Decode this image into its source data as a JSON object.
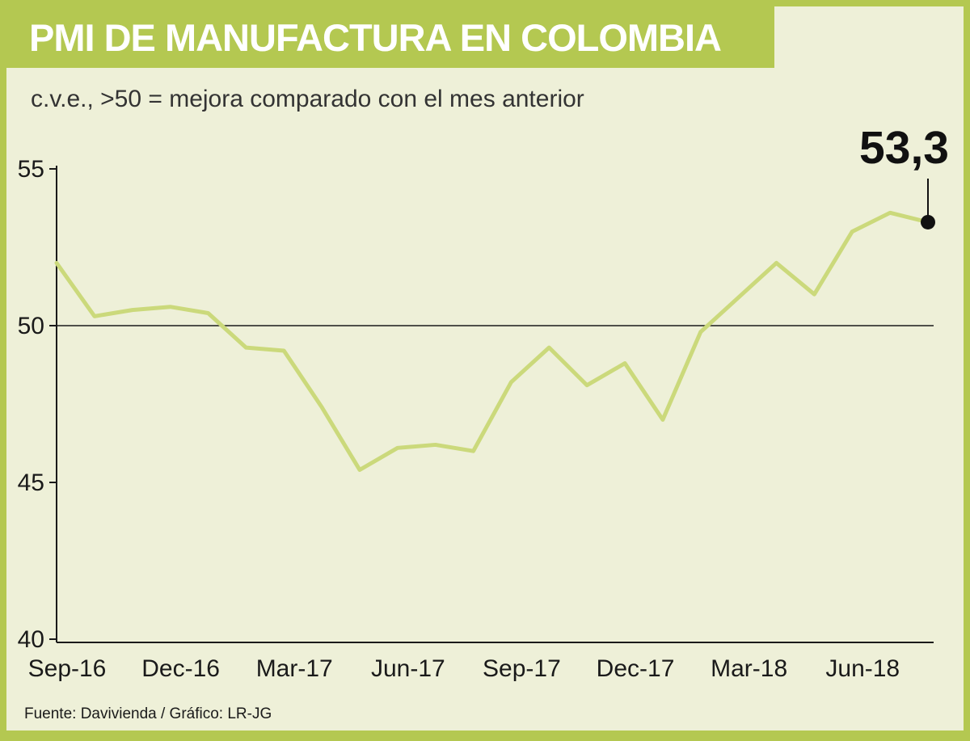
{
  "header": {
    "title": "PMI DE MANUFACTURA EN COLOMBIA"
  },
  "subtitle": "c.v.e., >50 = mejora comparado con el mes anterior",
  "annotation": {
    "label": "53,3"
  },
  "footer": "Fuente: Davivienda / Gráfico: LR-JG",
  "colors": {
    "band_green": "#b4c851",
    "background": "#eef0d8",
    "line": "#cbd97b",
    "axis": "#1a1a1a",
    "dot": "#111111"
  },
  "chart_data": {
    "type": "line",
    "title": "PMI DE MANUFACTURA EN COLOMBIA",
    "subtitle": "c.v.e., >50 = mejora comparado con el mes anterior",
    "x": [
      "Sep-16",
      "Oct-16",
      "Nov-16",
      "Dec-16",
      "Jan-17",
      "Feb-17",
      "Mar-17",
      "Apr-17",
      "May-17",
      "Jun-17",
      "Jul-17",
      "Aug-17",
      "Sep-17",
      "Oct-17",
      "Nov-17",
      "Dec-17",
      "Jan-18",
      "Feb-18",
      "Mar-18",
      "Apr-18",
      "May-18",
      "Jun-18",
      "Jul-18",
      "Aug-18"
    ],
    "values": [
      52.0,
      50.3,
      50.5,
      50.6,
      50.4,
      49.3,
      49.2,
      47.4,
      45.4,
      46.1,
      46.2,
      46.0,
      48.2,
      49.3,
      48.1,
      48.8,
      47.0,
      49.8,
      50.9,
      52.0,
      51.0,
      53.0,
      53.6,
      53.3
    ],
    "x_tick_labels": [
      "Sep-16",
      "Dec-16",
      "Mar-17",
      "Jun-17",
      "Sep-17",
      "Dec-17",
      "Mar-18",
      "Jun-18"
    ],
    "y_ticks": [
      55,
      50,
      45,
      40
    ],
    "ylim": [
      40,
      55
    ],
    "reference_line": 50,
    "grid": "off",
    "legend": "none",
    "last_point_label": "53,3",
    "source": "Fuente: Davivienda / Gráfico: LR-JG"
  }
}
